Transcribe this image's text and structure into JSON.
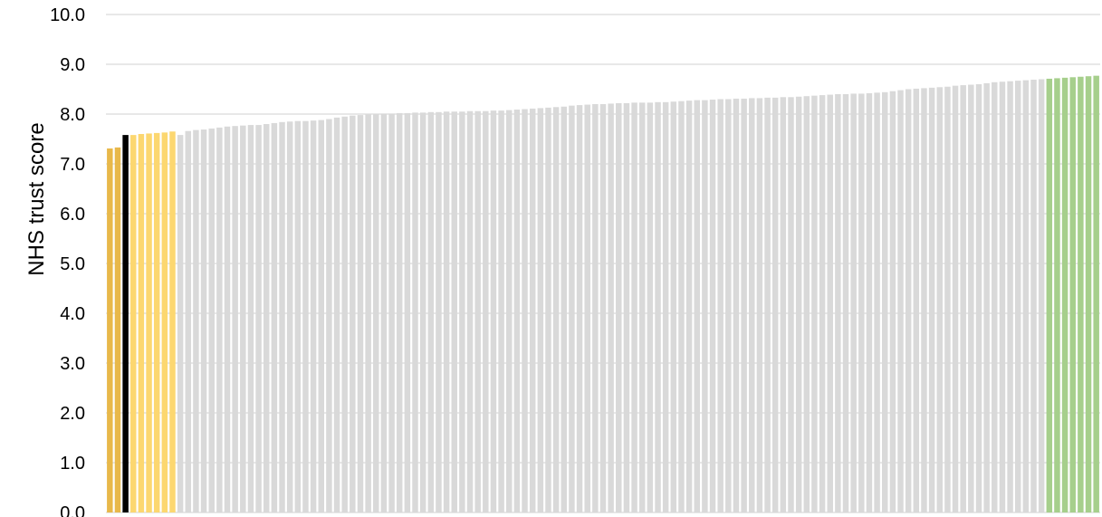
{
  "chart_data": {
    "type": "bar",
    "ylabel": "NHS trust score",
    "ylim": [
      0,
      10
    ],
    "yticks": [
      "0.0",
      "1.0",
      "2.0",
      "3.0",
      "4.0",
      "5.0",
      "6.0",
      "7.0",
      "8.0",
      "9.0",
      "10.0"
    ],
    "grid": true,
    "colors": {
      "orange": "#e8b84a",
      "black": "#000000",
      "yellow": "#fcd770",
      "grey": "#d9d9d9",
      "green": "#a6cf8c",
      "grid": "#d9d9d9"
    },
    "series": [
      {
        "values": [
          7.31,
          7.33,
          7.58,
          7.58,
          7.6,
          7.61,
          7.62,
          7.63,
          7.65,
          7.58,
          7.66,
          7.68,
          7.69,
          7.71,
          7.73,
          7.75,
          7.76,
          7.77,
          7.78,
          7.78,
          7.8,
          7.82,
          7.84,
          7.85,
          7.86,
          7.86,
          7.87,
          7.88,
          7.9,
          7.93,
          7.95,
          7.97,
          7.98,
          7.99,
          8.0,
          8.01,
          8.01,
          8.02,
          8.02,
          8.03,
          8.03,
          8.04,
          8.04,
          8.05,
          8.05,
          8.05,
          8.06,
          8.06,
          8.06,
          8.07,
          8.07,
          8.08,
          8.09,
          8.1,
          8.11,
          8.12,
          8.13,
          8.14,
          8.15,
          8.17,
          8.18,
          8.19,
          8.2,
          8.2,
          8.21,
          8.22,
          8.22,
          8.23,
          8.23,
          8.23,
          8.24,
          8.24,
          8.25,
          8.26,
          8.27,
          8.28,
          8.28,
          8.29,
          8.3,
          8.3,
          8.31,
          8.31,
          8.32,
          8.32,
          8.33,
          8.33,
          8.34,
          8.34,
          8.35,
          8.36,
          8.37,
          8.38,
          8.39,
          8.4,
          8.4,
          8.41,
          8.41,
          8.42,
          8.43,
          8.44,
          8.46,
          8.48,
          8.5,
          8.51,
          8.52,
          8.53,
          8.54,
          8.55,
          8.57,
          8.58,
          8.59,
          8.6,
          8.62,
          8.64,
          8.65,
          8.66,
          8.67,
          8.68,
          8.69,
          8.7,
          8.71,
          8.72,
          8.73,
          8.74,
          8.75,
          8.76,
          8.77
        ],
        "colors": [
          "orange",
          "orange",
          "black",
          "yellow",
          "yellow",
          "yellow",
          "yellow",
          "yellow",
          "yellow",
          "grey",
          "grey",
          "grey",
          "grey",
          "grey",
          "grey",
          "grey",
          "grey",
          "grey",
          "grey",
          "grey",
          "grey",
          "grey",
          "grey",
          "grey",
          "grey",
          "grey",
          "grey",
          "grey",
          "grey",
          "grey",
          "grey",
          "grey",
          "grey",
          "grey",
          "grey",
          "grey",
          "grey",
          "grey",
          "grey",
          "grey",
          "grey",
          "grey",
          "grey",
          "grey",
          "grey",
          "grey",
          "grey",
          "grey",
          "grey",
          "grey",
          "grey",
          "grey",
          "grey",
          "grey",
          "grey",
          "grey",
          "grey",
          "grey",
          "grey",
          "grey",
          "grey",
          "grey",
          "grey",
          "grey",
          "grey",
          "grey",
          "grey",
          "grey",
          "grey",
          "grey",
          "grey",
          "grey",
          "grey",
          "grey",
          "grey",
          "grey",
          "grey",
          "grey",
          "grey",
          "grey",
          "grey",
          "grey",
          "grey",
          "grey",
          "grey",
          "grey",
          "grey",
          "grey",
          "grey",
          "grey",
          "grey",
          "grey",
          "grey",
          "grey",
          "grey",
          "grey",
          "grey",
          "grey",
          "grey",
          "grey",
          "grey",
          "grey",
          "grey",
          "grey",
          "grey",
          "grey",
          "grey",
          "grey",
          "grey",
          "grey",
          "grey",
          "grey",
          "grey",
          "grey",
          "grey",
          "grey",
          "grey",
          "grey",
          "grey",
          "grey",
          "green",
          "green",
          "green",
          "green",
          "green",
          "green",
          "green"
        ]
      }
    ]
  }
}
